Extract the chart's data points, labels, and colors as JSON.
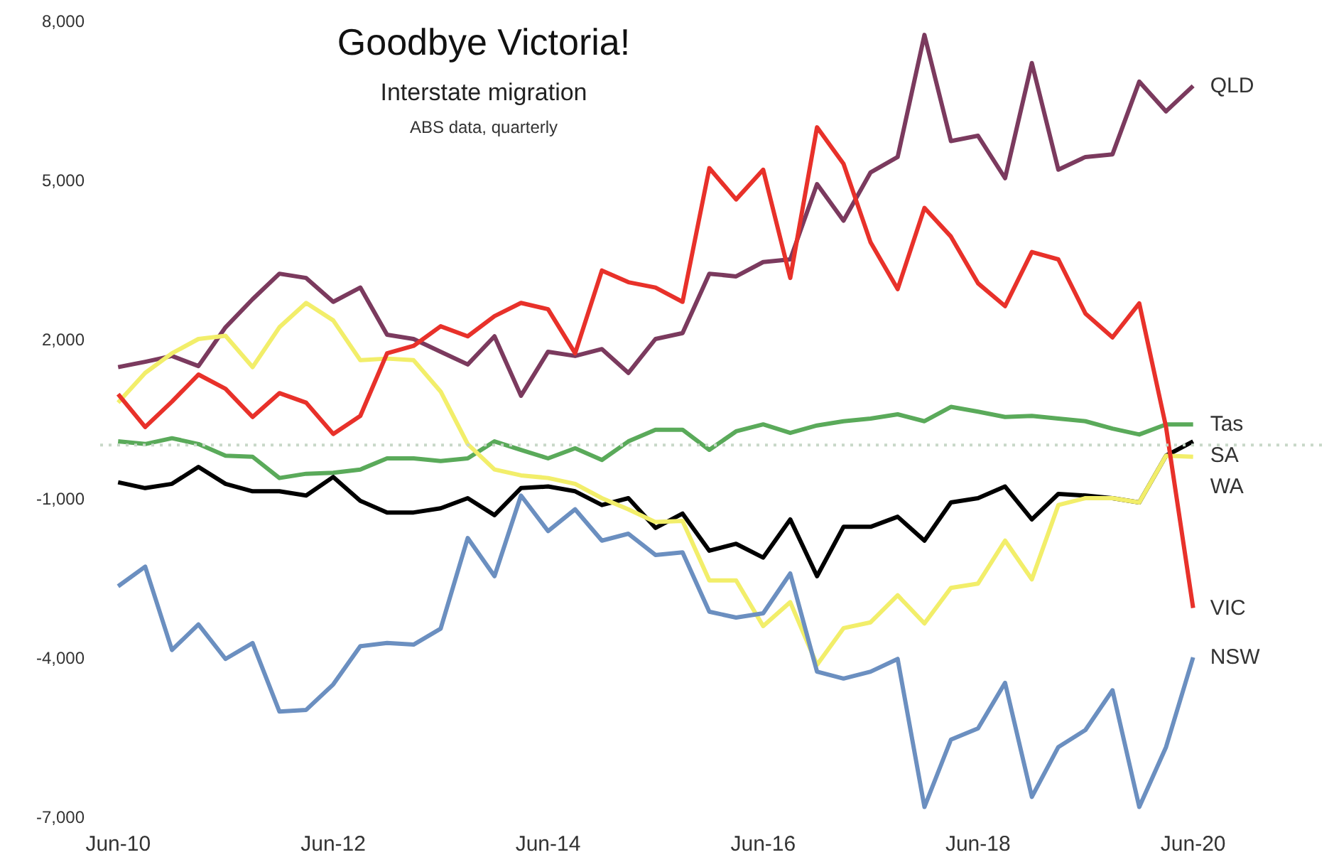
{
  "chart_data": {
    "type": "line",
    "title": "Goodbye Victoria!",
    "subtitle": "Interstate migration",
    "annotations": [
      "ABS data, quarterly"
    ],
    "x": [
      "2010-06",
      "2010-09",
      "2010-12",
      "2011-03",
      "2011-06",
      "2011-09",
      "2011-12",
      "2012-03",
      "2012-06",
      "2012-09",
      "2012-12",
      "2013-03",
      "2013-06",
      "2013-09",
      "2013-12",
      "2014-03",
      "2014-06",
      "2014-09",
      "2014-12",
      "2015-03",
      "2015-06",
      "2015-09",
      "2015-12",
      "2016-03",
      "2016-06",
      "2016-09",
      "2016-12",
      "2017-03",
      "2017-06",
      "2017-09",
      "2017-12",
      "2018-03",
      "2018-06",
      "2018-09",
      "2018-12",
      "2019-03",
      "2019-06",
      "2019-09",
      "2019-12",
      "2020-03",
      "2020-06"
    ],
    "series": [
      {
        "name": "QLD",
        "color": "#7b3a5e",
        "values": [
          1470,
          1570,
          1680,
          1490,
          2220,
          2750,
          3230,
          3150,
          2700,
          2970,
          2080,
          2000,
          1760,
          1520,
          2050,
          930,
          1760,
          1680,
          1810,
          1360,
          2000,
          2110,
          3230,
          3180,
          3450,
          3500,
          4920,
          4230,
          5140,
          5430,
          7730,
          5730,
          5830,
          5030,
          7200,
          5190,
          5430,
          5480,
          6850,
          6290,
          6770
        ]
      },
      {
        "name": "Tas",
        "color": "#5aaa5a",
        "values": [
          70,
          20,
          130,
          20,
          -200,
          -220,
          -620,
          -540,
          -520,
          -460,
          -250,
          -250,
          -300,
          -250,
          70,
          -90,
          -250,
          -60,
          -280,
          70,
          290,
          290,
          -90,
          260,
          390,
          230,
          370,
          450,
          500,
          580,
          450,
          720,
          630,
          530,
          550,
          500,
          450,
          310,
          200,
          390,
          390
        ]
      },
      {
        "name": "SA",
        "color": "#000000",
        "values": [
          -700,
          -810,
          -730,
          -410,
          -730,
          -870,
          -870,
          -950,
          -600,
          -1050,
          -1270,
          -1270,
          -1190,
          -1000,
          -1320,
          -810,
          -780,
          -870,
          -1130,
          -1000,
          -1560,
          -1290,
          -1990,
          -1860,
          -2120,
          -1400,
          -2470,
          -1540,
          -1540,
          -1350,
          -1800,
          -1080,
          -1000,
          -780,
          -1400,
          -920,
          -950,
          -1000,
          -1080,
          -200,
          70
        ]
      },
      {
        "name": "WA",
        "color": "#f2ee6a",
        "values": [
          800,
          1360,
          1730,
          2000,
          2060,
          1470,
          2220,
          2680,
          2350,
          1600,
          1630,
          1600,
          1010,
          20,
          -460,
          -570,
          -620,
          -730,
          -1000,
          -1210,
          -1450,
          -1430,
          -2550,
          -2550,
          -3410,
          -2960,
          -4140,
          -3450,
          -3340,
          -2830,
          -3360,
          -2690,
          -2610,
          -1800,
          -2530,
          -1130,
          -1000,
          -1000,
          -1080,
          -200,
          -220
        ]
      },
      {
        "name": "VIC",
        "color": "#e8312a",
        "values": [
          960,
          340,
          820,
          1330,
          1060,
          530,
          980,
          800,
          210,
          550,
          1730,
          1870,
          2240,
          2050,
          2430,
          2680,
          2560,
          1730,
          3290,
          3070,
          2970,
          2700,
          5220,
          4630,
          5190,
          3150,
          5990,
          5300,
          3820,
          2940,
          4470,
          3930,
          3050,
          2620,
          3640,
          3500,
          2480,
          2030,
          2670,
          340,
          -3070
        ]
      },
      {
        "name": "NSW",
        "color": "#6b8fc0",
        "values": [
          -2660,
          -2290,
          -3860,
          -3380,
          -4030,
          -3730,
          -5020,
          -4990,
          -4510,
          -3790,
          -3730,
          -3760,
          -3460,
          -1750,
          -2470,
          -950,
          -1620,
          -1210,
          -1800,
          -1670,
          -2070,
          -2020,
          -3140,
          -3250,
          -3170,
          -2420,
          -4270,
          -4400,
          -4270,
          -4030,
          -6820,
          -5550,
          -5340,
          -4480,
          -6630,
          -5690,
          -5370,
          -4620,
          -6820,
          -5690,
          -4000
        ]
      }
    ],
    "xlim": [
      "2010-04",
      "2021-09"
    ],
    "xticks": [
      {
        "value": "2010-06",
        "label": "Jun-10"
      },
      {
        "value": "2012-06",
        "label": "Jun-12"
      },
      {
        "value": "2014-06",
        "label": "Jun-14"
      },
      {
        "value": "2016-06",
        "label": "Jun-16"
      },
      {
        "value": "2018-06",
        "label": "Jun-18"
      },
      {
        "value": "2020-06",
        "label": "Jun-20"
      }
    ],
    "ylim": [
      -7000,
      8000
    ],
    "yticks": [
      {
        "value": 8000,
        "label": "8,000"
      },
      {
        "value": 5000,
        "label": "5,000"
      },
      {
        "value": 2000,
        "label": "2,000"
      },
      {
        "value": -1000,
        "label": "-1,000"
      },
      {
        "value": -4000,
        "label": "-4,000"
      },
      {
        "value": -7000,
        "label": "-7,000"
      }
    ],
    "ref_lines": [
      {
        "axis": "y",
        "value": 0,
        "color": "#c8d8c8",
        "line_style": "dotted"
      }
    ],
    "grid": false,
    "line_style": "solid"
  }
}
